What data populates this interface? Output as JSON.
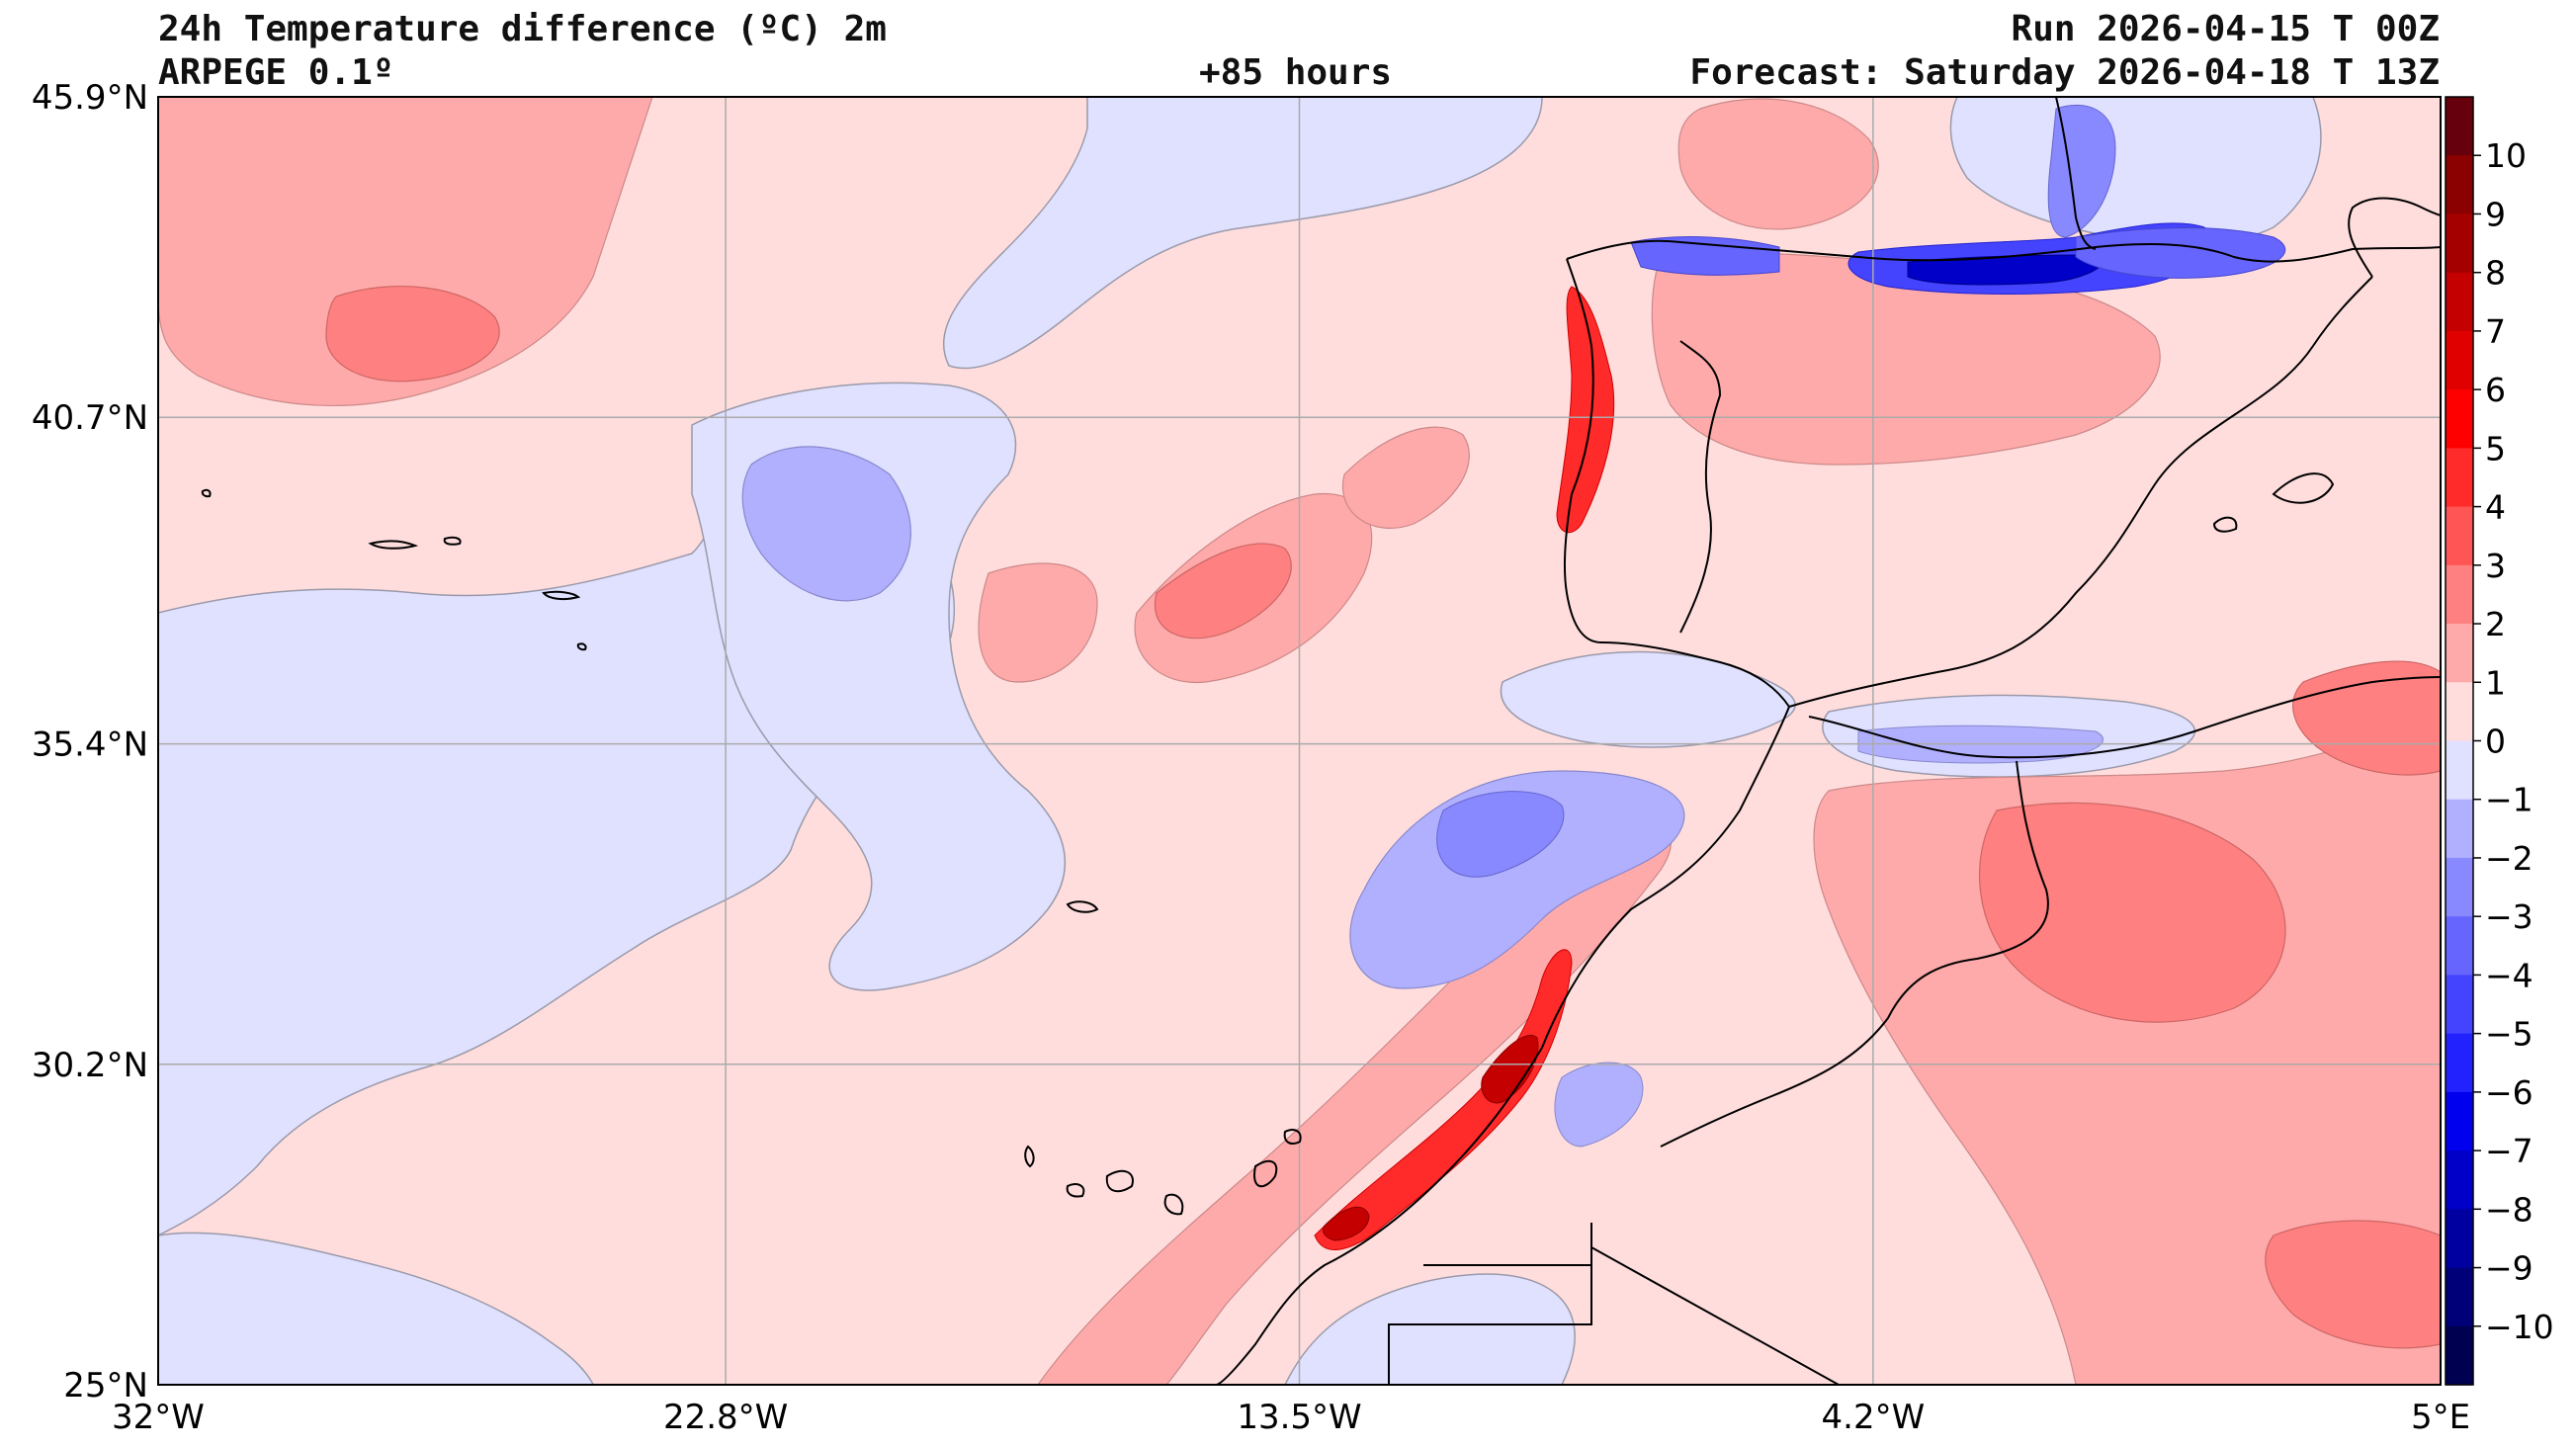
{
  "header": {
    "title": "24h Temperature difference (ºC) 2m",
    "model": "ARPEGE 0.1º",
    "lead_time": "+85 hours",
    "run": "Run 2026-04-15 T 00Z",
    "forecast": "Forecast: Saturday 2026-04-18 T 13Z"
  },
  "map": {
    "lat_labels": [
      "45.9°N",
      "40.7°N",
      "35.4°N",
      "30.2°N",
      "25°N"
    ],
    "lon_labels": [
      "32°W",
      "22.8°W",
      "13.5°W",
      "4.2°W",
      "5°E"
    ],
    "lat_values": [
      45.9,
      40.7,
      35.4,
      30.2,
      25.0
    ],
    "lon_values": [
      -32,
      -22.8,
      -13.5,
      -4.2,
      5
    ],
    "lon_range": [
      -32,
      5
    ],
    "lat_range": [
      25,
      45.9
    ]
  },
  "colorbar": {
    "ticks": [
      "10",
      "9",
      "8",
      "7",
      "6",
      "5",
      "4",
      "3",
      "2",
      "1",
      "0",
      "−1",
      "−2",
      "−3",
      "−4",
      "−5",
      "−6",
      "−7",
      "−8",
      "−9",
      "−10"
    ],
    "levels_top_to_bottom": [
      "#67000d",
      "#8b0000",
      "#a50000",
      "#c40000",
      "#e00000",
      "#ff0000",
      "#ff2a2a",
      "#ff5555",
      "#ff8080",
      "#ffaaaa",
      "#ffdddd",
      "#e0e0ff",
      "#b0b0ff",
      "#8888ff",
      "#6666ff",
      "#4444ff",
      "#2222ff",
      "#0000ee",
      "#0000c8",
      "#0000a0",
      "#000078",
      "#000050"
    ]
  },
  "colors": {
    "background_warm": "#ffdddd",
    "land_cool": "#e0e0ff",
    "grid": "#aaaaaa"
  }
}
